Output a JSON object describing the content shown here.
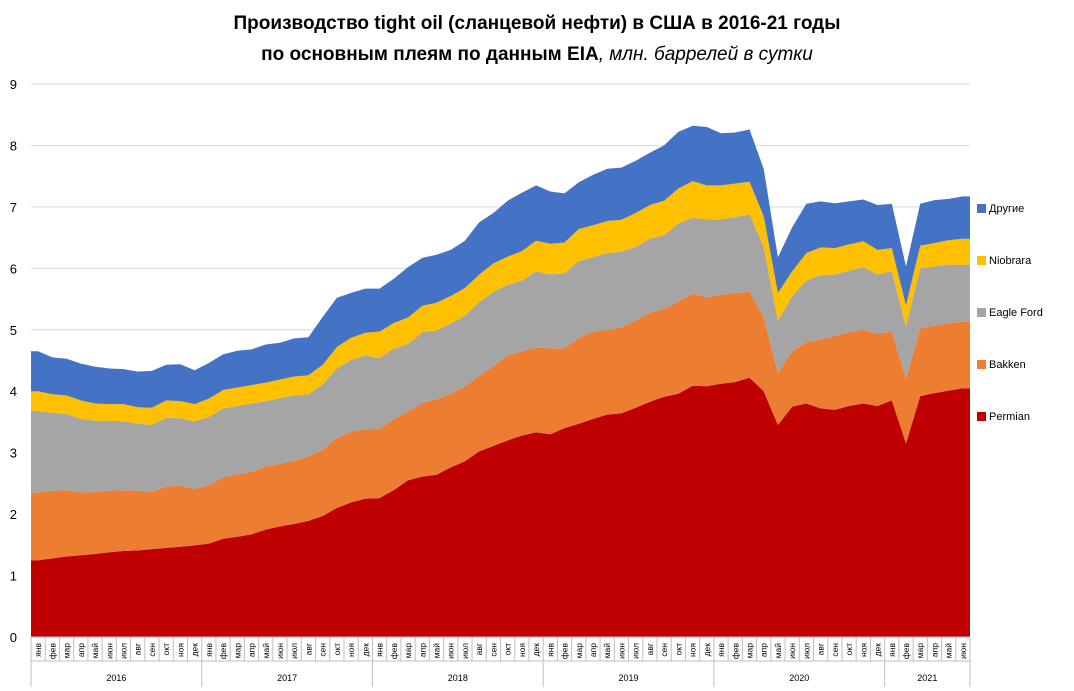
{
  "title": {
    "line1": "Производство tight oil (сланцевой нефти) в США в 2016-21 годы",
    "line2_main": "по основным плеям по данным EIA",
    "line2_unit": ", млн. баррелей в сутки"
  },
  "chart_data": {
    "type": "area",
    "stacked": true,
    "ylim": [
      0,
      9
    ],
    "yticks": [
      "0",
      "1",
      "2",
      "3",
      "4",
      "5",
      "6",
      "7",
      "8",
      "9"
    ],
    "grid": true,
    "legend_position": "right",
    "months": [
      "янв",
      "фев",
      "мар",
      "апр",
      "май",
      "июн",
      "июл",
      "авг",
      "сен",
      "окт",
      "ноя",
      "дек"
    ],
    "months_2021": [
      "янв",
      "фев",
      "мар",
      "апр",
      "май",
      "июн"
    ],
    "years": [
      "2016",
      "2017",
      "2018",
      "2019",
      "2020",
      "2021"
    ],
    "series": [
      {
        "name": "Permian",
        "color": "#C00000",
        "values": [
          1.25,
          1.28,
          1.31,
          1.33,
          1.35,
          1.38,
          1.4,
          1.41,
          1.43,
          1.45,
          1.47,
          1.49,
          1.52,
          1.6,
          1.63,
          1.67,
          1.75,
          1.8,
          1.84,
          1.89,
          1.97,
          2.1,
          2.19,
          2.25,
          2.26,
          2.39,
          2.55,
          2.61,
          2.64,
          2.76,
          2.86,
          3.02,
          3.11,
          3.2,
          3.28,
          3.33,
          3.3,
          3.4,
          3.47,
          3.55,
          3.62,
          3.64,
          3.73,
          3.83,
          3.91,
          3.96,
          4.09,
          4.08,
          4.12,
          4.15,
          4.22,
          4.0,
          3.45,
          3.75,
          3.8,
          3.72,
          3.7,
          3.76,
          3.8,
          3.76,
          3.85,
          3.15,
          3.92,
          3.97,
          4.01,
          4.05
        ]
      },
      {
        "name": "Bakken",
        "color": "#ED7D31",
        "values": [
          1.1,
          1.1,
          1.08,
          1.02,
          1.01,
          1.0,
          0.99,
          0.97,
          0.93,
          1.0,
          0.99,
          0.92,
          0.95,
          1.0,
          1.02,
          1.02,
          1.02,
          1.02,
          1.03,
          1.05,
          1.08,
          1.14,
          1.15,
          1.13,
          1.13,
          1.15,
          1.12,
          1.2,
          1.23,
          1.2,
          1.22,
          1.23,
          1.3,
          1.38,
          1.37,
          1.38,
          1.4,
          1.3,
          1.4,
          1.42,
          1.38,
          1.4,
          1.42,
          1.45,
          1.43,
          1.5,
          1.5,
          1.45,
          1.45,
          1.45,
          1.4,
          1.2,
          0.85,
          0.9,
          1.0,
          1.12,
          1.2,
          1.2,
          1.2,
          1.18,
          1.12,
          1.05,
          1.1,
          1.1,
          1.1,
          1.08
        ]
      },
      {
        "name": "Eagle Ford",
        "color": "#A5A5A5",
        "values": [
          1.33,
          1.27,
          1.24,
          1.2,
          1.16,
          1.14,
          1.12,
          1.09,
          1.09,
          1.12,
          1.1,
          1.1,
          1.11,
          1.12,
          1.11,
          1.11,
          1.07,
          1.07,
          1.06,
          1.01,
          1.06,
          1.13,
          1.17,
          1.2,
          1.15,
          1.15,
          1.1,
          1.15,
          1.12,
          1.14,
          1.15,
          1.2,
          1.21,
          1.15,
          1.15,
          1.24,
          1.2,
          1.22,
          1.25,
          1.21,
          1.25,
          1.23,
          1.2,
          1.2,
          1.2,
          1.27,
          1.23,
          1.27,
          1.23,
          1.23,
          1.26,
          1.15,
          0.85,
          0.9,
          1.0,
          1.05,
          1.0,
          1.0,
          1.02,
          0.96,
          0.98,
          0.85,
          0.98,
          0.96,
          0.95,
          0.93
        ]
      },
      {
        "name": "Niobrara",
        "color": "#FFC000",
        "values": [
          0.32,
          0.3,
          0.3,
          0.3,
          0.28,
          0.27,
          0.28,
          0.27,
          0.28,
          0.28,
          0.28,
          0.28,
          0.3,
          0.3,
          0.3,
          0.3,
          0.3,
          0.3,
          0.31,
          0.31,
          0.32,
          0.35,
          0.36,
          0.37,
          0.43,
          0.42,
          0.43,
          0.43,
          0.45,
          0.45,
          0.45,
          0.45,
          0.46,
          0.46,
          0.48,
          0.5,
          0.5,
          0.5,
          0.52,
          0.52,
          0.52,
          0.52,
          0.55,
          0.55,
          0.56,
          0.57,
          0.6,
          0.55,
          0.55,
          0.55,
          0.53,
          0.5,
          0.45,
          0.4,
          0.45,
          0.45,
          0.43,
          0.43,
          0.42,
          0.4,
          0.38,
          0.35,
          0.37,
          0.38,
          0.4,
          0.42
        ]
      },
      {
        "name": "Другие",
        "color": "#4472C4",
        "values": [
          0.65,
          0.6,
          0.6,
          0.6,
          0.6,
          0.58,
          0.57,
          0.58,
          0.6,
          0.58,
          0.6,
          0.55,
          0.58,
          0.58,
          0.6,
          0.58,
          0.62,
          0.6,
          0.62,
          0.62,
          0.78,
          0.8,
          0.73,
          0.72,
          0.7,
          0.72,
          0.82,
          0.78,
          0.78,
          0.75,
          0.77,
          0.85,
          0.82,
          0.91,
          0.95,
          0.9,
          0.85,
          0.8,
          0.76,
          0.82,
          0.85,
          0.85,
          0.85,
          0.85,
          0.9,
          0.92,
          0.9,
          0.95,
          0.85,
          0.83,
          0.85,
          0.77,
          0.58,
          0.72,
          0.8,
          0.75,
          0.73,
          0.7,
          0.68,
          0.73,
          0.72,
          0.63,
          0.68,
          0.7,
          0.67,
          0.69
        ]
      }
    ]
  }
}
